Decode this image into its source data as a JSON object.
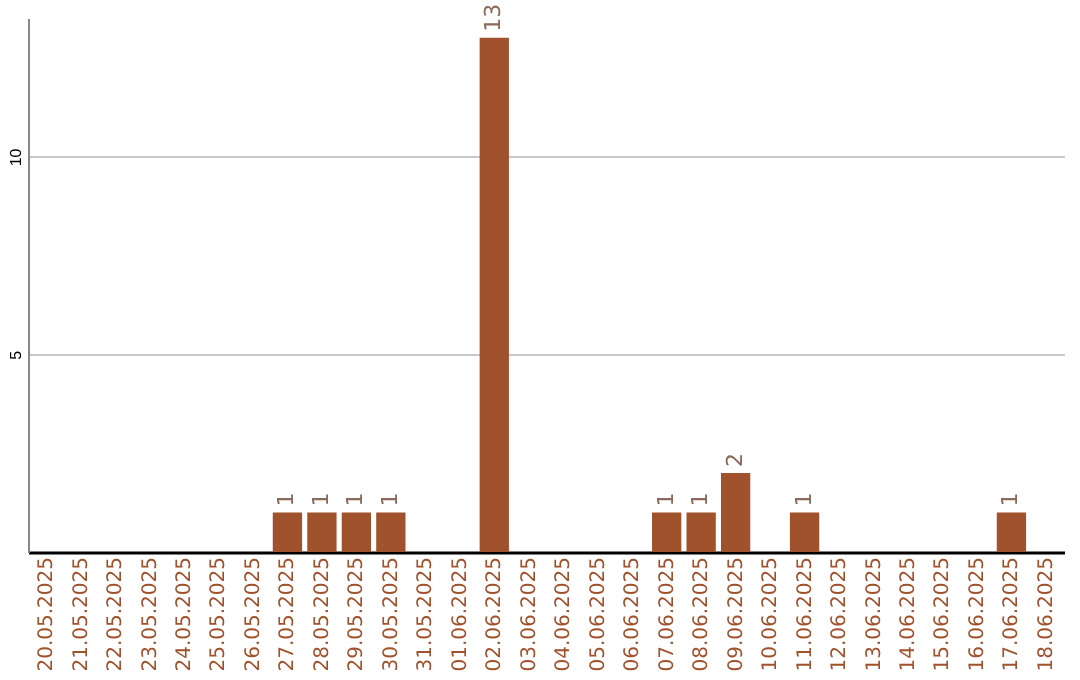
{
  "chart_data": {
    "type": "bar",
    "categories": [
      "20.05.2025",
      "21.05.2025",
      "22.05.2025",
      "23.05.2025",
      "24.05.2025",
      "25.05.2025",
      "26.05.2025",
      "27.05.2025",
      "28.05.2025",
      "29.05.2025",
      "30.05.2025",
      "31.05.2025",
      "01.06.2025",
      "02.06.2025",
      "03.06.2025",
      "04.06.2025",
      "05.06.2025",
      "06.06.2025",
      "07.06.2025",
      "08.06.2025",
      "09.06.2025",
      "10.06.2025",
      "11.06.2025",
      "12.06.2025",
      "13.06.2025",
      "14.06.2025",
      "15.06.2025",
      "16.06.2025",
      "17.06.2025",
      "18.06.2025"
    ],
    "values": [
      0,
      0,
      0,
      0,
      0,
      0,
      0,
      1,
      1,
      1,
      1,
      0,
      0,
      13,
      0,
      0,
      0,
      0,
      1,
      1,
      2,
      0,
      1,
      0,
      0,
      0,
      0,
      0,
      1,
      0
    ],
    "value_labels": [
      null,
      null,
      null,
      null,
      null,
      null,
      null,
      "1",
      "1",
      "1",
      "1",
      null,
      null,
      "13",
      null,
      null,
      null,
      null,
      "1",
      "1",
      "2",
      null,
      "1",
      null,
      null,
      null,
      null,
      null,
      "1",
      null
    ],
    "color": "#a0522d",
    "ylim": [
      0,
      13.5
    ],
    "yticks": [
      5,
      10
    ],
    "grid": "y"
  }
}
